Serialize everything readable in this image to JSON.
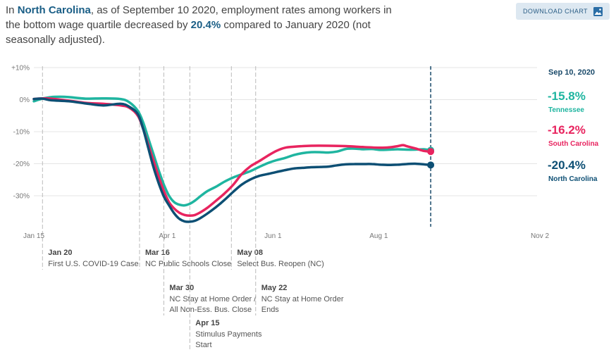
{
  "header": {
    "intro": "In ",
    "state": "North Carolina",
    "middle": ", as of September 10 2020, employment rates among workers in the bottom wage quartile decreased by ",
    "change": "20.4%",
    "outro": " compared to January 2020 (not seasonally adjusted)."
  },
  "toolbar": {
    "download_label": "DOWNLOAD CHART",
    "download_icon": "image-icon"
  },
  "chart_data": {
    "type": "line",
    "title": "",
    "xlabel": "",
    "ylabel": "",
    "ylim": [
      -40,
      10
    ],
    "x_range_days": [
      0,
      295
    ],
    "x_ticks": [
      {
        "day": 0,
        "label": "Jan 15"
      },
      {
        "day": 77,
        "label": "Apr 1"
      },
      {
        "day": 138,
        "label": "Jun 1"
      },
      {
        "day": 199,
        "label": "Aug 1"
      },
      {
        "day": 292,
        "label": "Nov 2"
      }
    ],
    "y_ticks": [
      {
        "value": 10,
        "label": "+10%"
      },
      {
        "value": 0,
        "label": "0%"
      },
      {
        "value": -10,
        "label": "-10%"
      },
      {
        "value": -20,
        "label": "-20%"
      },
      {
        "value": -30,
        "label": "-30%"
      }
    ],
    "series": [
      {
        "name": "Tennessee",
        "color": "#1fb5a0",
        "end_label": "-15.8%",
        "points": [
          [
            0,
            -0.5
          ],
          [
            5,
            0.3
          ],
          [
            10,
            0.8
          ],
          [
            15,
            0.9
          ],
          [
            20,
            0.8
          ],
          [
            30,
            0.3
          ],
          [
            40,
            0.4
          ],
          [
            50,
            0.2
          ],
          [
            55,
            -0.8
          ],
          [
            60,
            -3.5
          ],
          [
            63,
            -7
          ],
          [
            66,
            -12
          ],
          [
            69,
            -17
          ],
          [
            72,
            -22
          ],
          [
            75,
            -26.5
          ],
          [
            78,
            -30
          ],
          [
            81,
            -32
          ],
          [
            84,
            -32.8
          ],
          [
            87,
            -33
          ],
          [
            90,
            -32.5
          ],
          [
            93,
            -31.5
          ],
          [
            96,
            -30.2
          ],
          [
            100,
            -28.6
          ],
          [
            105,
            -27.2
          ],
          [
            110,
            -25.6
          ],
          [
            115,
            -24.3
          ],
          [
            120,
            -23.3
          ],
          [
            125,
            -22.3
          ],
          [
            130,
            -21
          ],
          [
            135,
            -19.8
          ],
          [
            140,
            -18.9
          ],
          [
            145,
            -18.2
          ],
          [
            150,
            -17.3
          ],
          [
            155,
            -16.7
          ],
          [
            160,
            -16.4
          ],
          [
            165,
            -16.4
          ],
          [
            170,
            -16.5
          ],
          [
            175,
            -16.2
          ],
          [
            180,
            -15.4
          ],
          [
            185,
            -15.3
          ],
          [
            190,
            -15.5
          ],
          [
            195,
            -15.4
          ],
          [
            200,
            -15.7
          ],
          [
            205,
            -15.6
          ],
          [
            210,
            -15.5
          ],
          [
            215,
            -15.6
          ],
          [
            220,
            -15.6
          ],
          [
            225,
            -15.5
          ],
          [
            229,
            -15.8
          ]
        ]
      },
      {
        "name": "South Carolina",
        "color": "#e8245f",
        "end_label": "-16.2%",
        "points": [
          [
            0,
            0.2
          ],
          [
            5,
            0.4
          ],
          [
            10,
            0.3
          ],
          [
            20,
            -0.3
          ],
          [
            30,
            -1
          ],
          [
            40,
            -1.3
          ],
          [
            50,
            -1.8
          ],
          [
            55,
            -2.5
          ],
          [
            60,
            -5
          ],
          [
            63,
            -9
          ],
          [
            66,
            -14
          ],
          [
            69,
            -19
          ],
          [
            72,
            -24
          ],
          [
            75,
            -28.5
          ],
          [
            78,
            -32
          ],
          [
            81,
            -34
          ],
          [
            84,
            -35.3
          ],
          [
            87,
            -36
          ],
          [
            90,
            -36.2
          ],
          [
            93,
            -36
          ],
          [
            96,
            -35.2
          ],
          [
            100,
            -33.8
          ],
          [
            105,
            -31.6
          ],
          [
            110,
            -29.3
          ],
          [
            115,
            -26.6
          ],
          [
            120,
            -23.2
          ],
          [
            125,
            -20.8
          ],
          [
            130,
            -19.2
          ],
          [
            135,
            -17.5
          ],
          [
            140,
            -16
          ],
          [
            145,
            -15
          ],
          [
            150,
            -14.7
          ],
          [
            155,
            -14.5
          ],
          [
            160,
            -14.4
          ],
          [
            170,
            -14.4
          ],
          [
            180,
            -14.5
          ],
          [
            190,
            -14.8
          ],
          [
            200,
            -15
          ],
          [
            205,
            -14.9
          ],
          [
            210,
            -14.5
          ],
          [
            213,
            -14.2
          ],
          [
            215,
            -14.5
          ],
          [
            220,
            -15.2
          ],
          [
            225,
            -16
          ],
          [
            229,
            -16.2
          ]
        ]
      },
      {
        "name": "North Carolina",
        "color": "#0d4f74",
        "end_label": "-20.4%",
        "points": [
          [
            0,
            0.2
          ],
          [
            5,
            0.3
          ],
          [
            10,
            -0.2
          ],
          [
            20,
            -0.5
          ],
          [
            30,
            -1.2
          ],
          [
            40,
            -1.8
          ],
          [
            50,
            -1.3
          ],
          [
            55,
            -2.2
          ],
          [
            60,
            -4.5
          ],
          [
            63,
            -9
          ],
          [
            66,
            -15
          ],
          [
            69,
            -21
          ],
          [
            72,
            -26
          ],
          [
            75,
            -30.2
          ],
          [
            78,
            -33
          ],
          [
            81,
            -35.5
          ],
          [
            84,
            -37.2
          ],
          [
            87,
            -38
          ],
          [
            90,
            -38.1
          ],
          [
            93,
            -37.8
          ],
          [
            96,
            -37
          ],
          [
            100,
            -35.6
          ],
          [
            105,
            -33.6
          ],
          [
            110,
            -31.3
          ],
          [
            115,
            -28.8
          ],
          [
            120,
            -26.5
          ],
          [
            125,
            -24.9
          ],
          [
            130,
            -23.8
          ],
          [
            135,
            -23.2
          ],
          [
            140,
            -22.6
          ],
          [
            145,
            -22
          ],
          [
            150,
            -21.5
          ],
          [
            155,
            -21.3
          ],
          [
            160,
            -21.1
          ],
          [
            165,
            -21.0
          ],
          [
            170,
            -20.9
          ],
          [
            175,
            -20.5
          ],
          [
            180,
            -20.2
          ],
          [
            185,
            -20.1
          ],
          [
            190,
            -20.1
          ],
          [
            195,
            -20.1
          ],
          [
            200,
            -20.3
          ],
          [
            205,
            -20.4
          ],
          [
            210,
            -20.3
          ],
          [
            215,
            -20.1
          ],
          [
            220,
            -20.0
          ],
          [
            225,
            -20.2
          ],
          [
            229,
            -20.4
          ]
        ]
      }
    ],
    "end_marker": {
      "day": 229,
      "date_label": "Sep 10, 2020"
    },
    "annotations": [
      {
        "day": 5,
        "date": "Jan 20",
        "lines": [
          "First U.S. COVID-19 Case"
        ],
        "level": 0
      },
      {
        "day": 61,
        "date": "Mar 16",
        "lines": [
          "NC Public Schools Close"
        ],
        "level": 0
      },
      {
        "day": 75,
        "date": "Mar 30",
        "lines": [
          "NC Stay at Home Order /",
          "All Non-Ess. Bus. Close"
        ],
        "level": 1
      },
      {
        "day": 90,
        "date": "Apr 15",
        "lines": [
          "Stimulus Payments",
          "Start"
        ],
        "level": 2
      },
      {
        "day": 114,
        "date": "May 08",
        "lines": [
          "Select Bus. Reopen (NC)"
        ],
        "level": 0
      },
      {
        "day": 128,
        "date": "May 22",
        "lines": [
          "NC Stay at Home Order",
          "Ends"
        ],
        "level": 1
      }
    ]
  }
}
